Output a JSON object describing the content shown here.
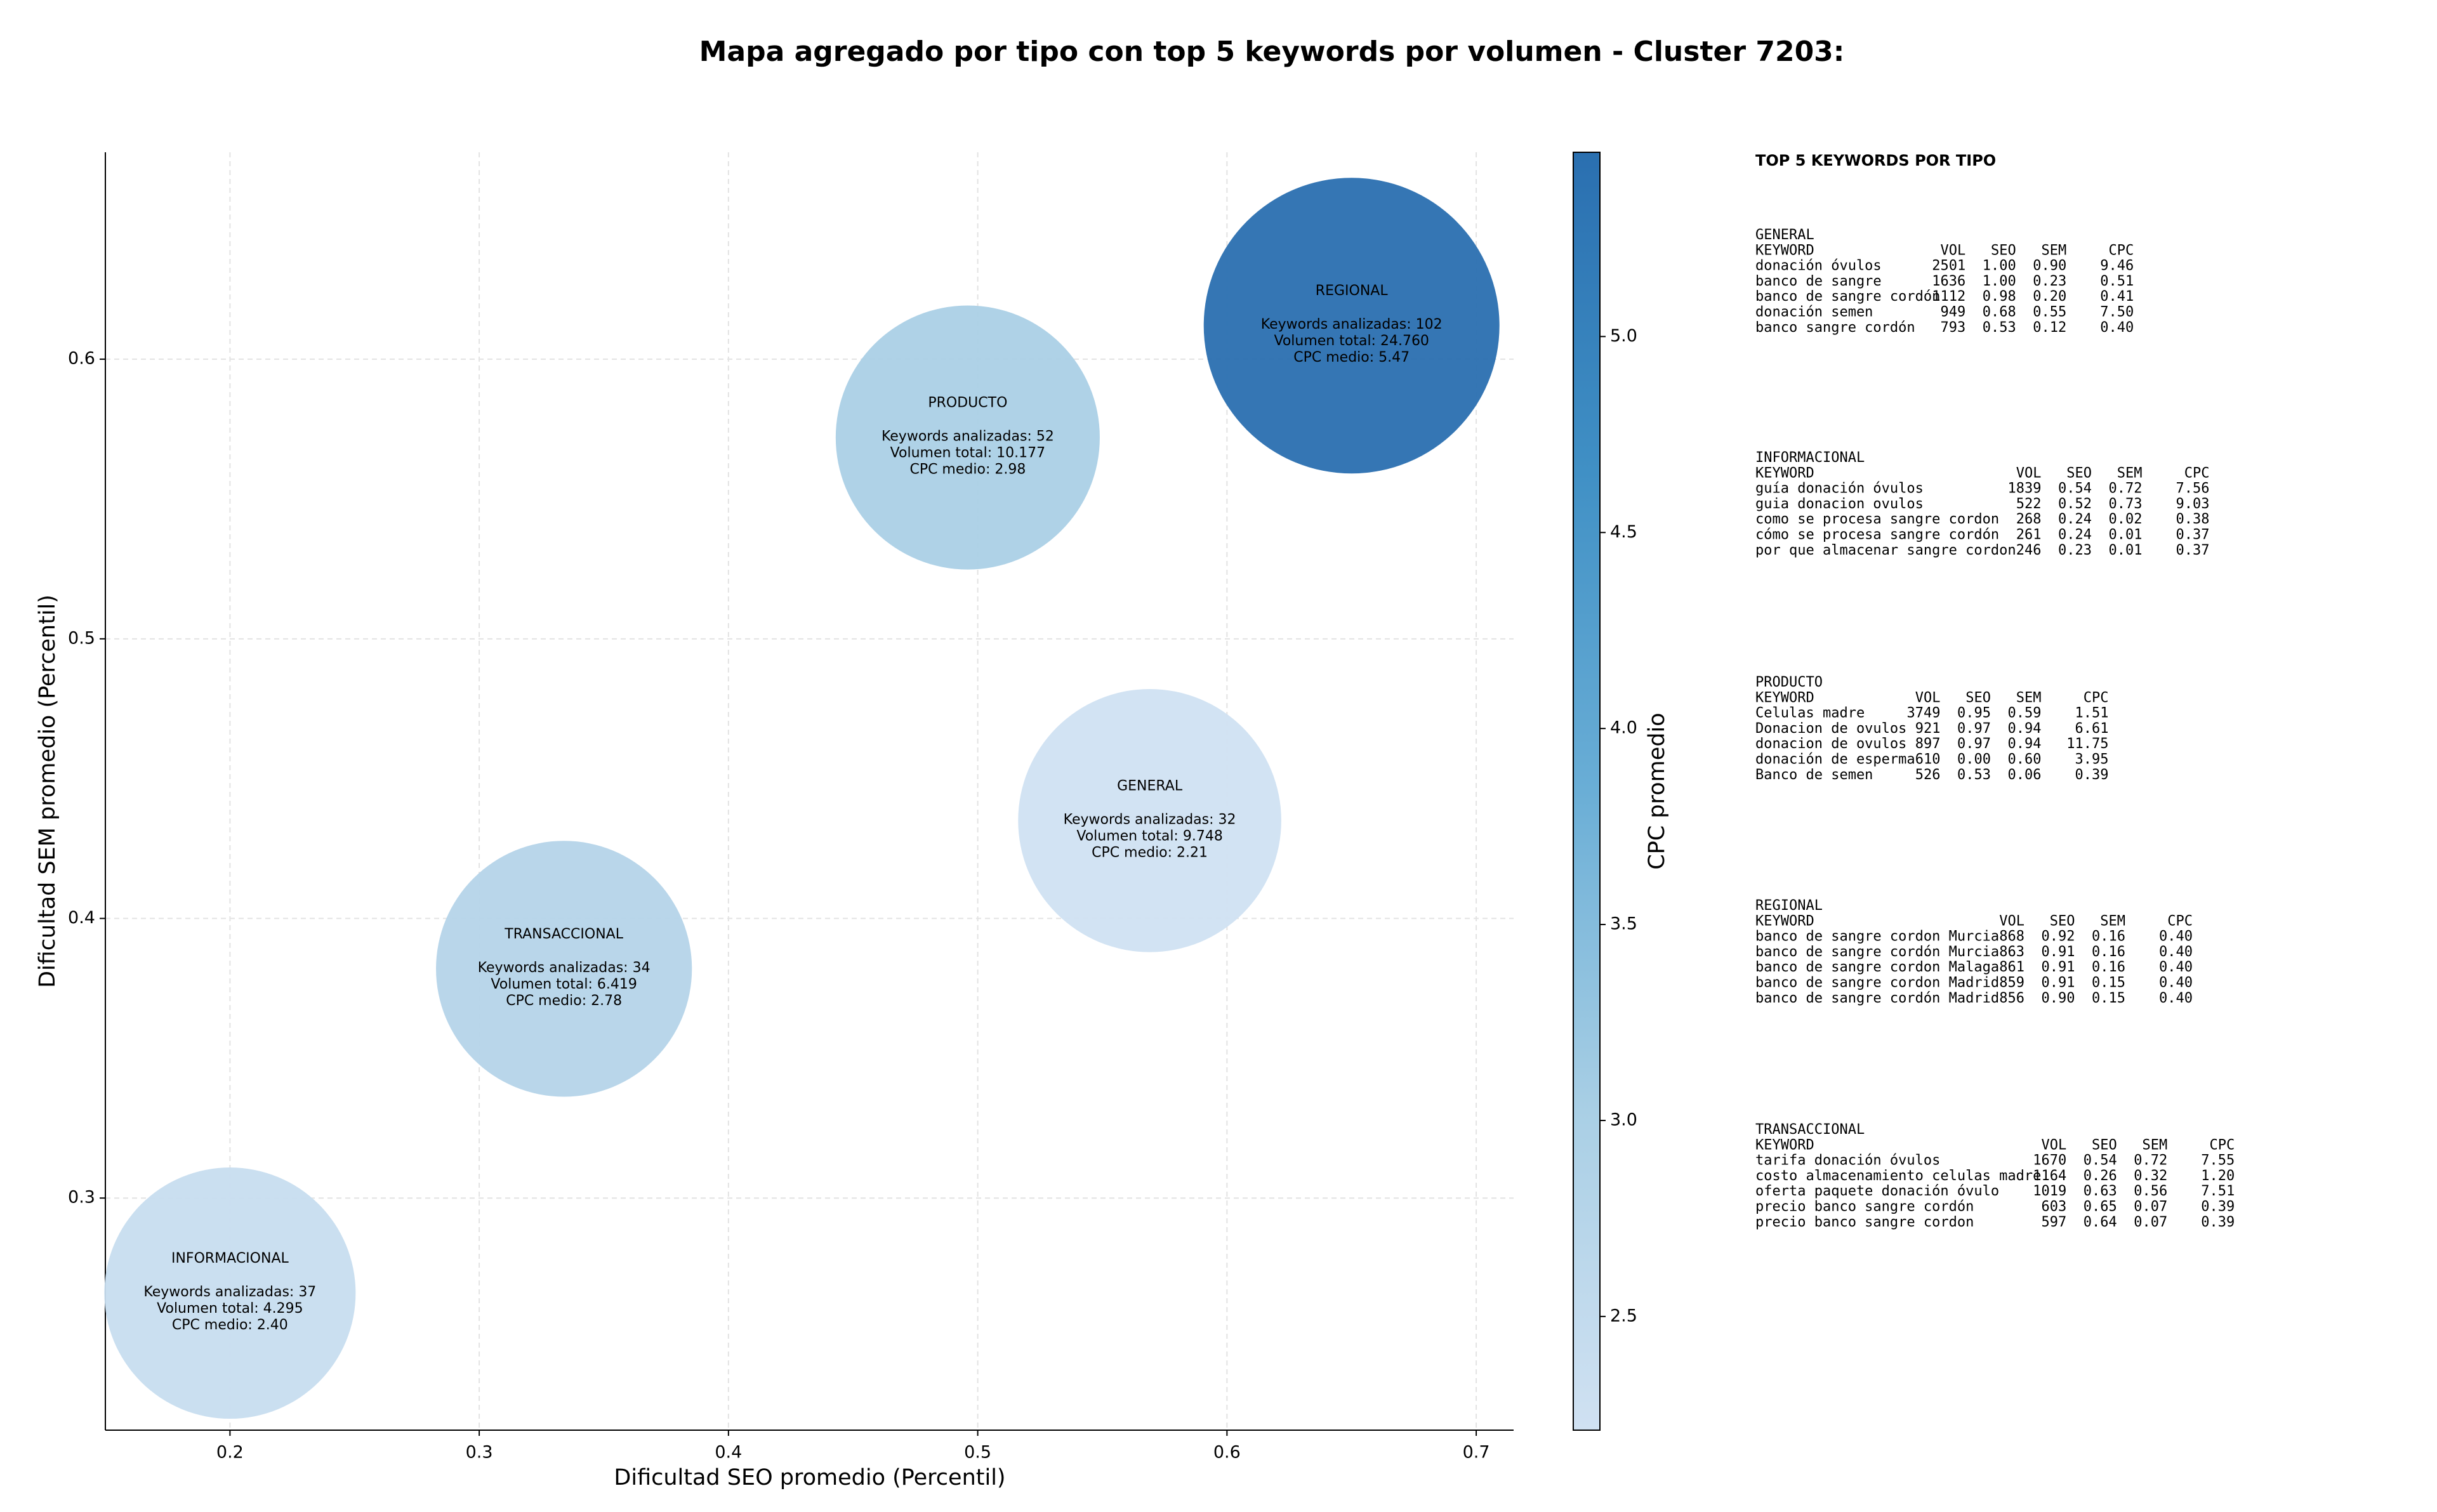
{
  "chart_data": {
    "type": "bubble",
    "title": "Mapa agregado por tipo con top 5 keywords por volumen - Cluster 7203:",
    "xlabel": "Dificultad SEO promedio (Percentil)",
    "ylabel": "Dificultad SEM promedio (Percentil)",
    "xlim": [
      0.15,
      0.715
    ],
    "ylim": [
      0.217,
      0.674
    ],
    "xticks": [
      0.2,
      0.3,
      0.4,
      0.5,
      0.6,
      0.7
    ],
    "yticks": [
      0.3,
      0.4,
      0.5,
      0.6
    ],
    "grid": true,
    "categories": [
      "INFORMACIONAL",
      "TRANSACCIONAL",
      "PRODUCTO",
      "GENERAL",
      "REGIONAL"
    ],
    "x": [
      0.2,
      0.334,
      0.496,
      0.569,
      0.65
    ],
    "values": [
      0.266,
      0.382,
      0.572,
      0.435,
      0.612
    ],
    "sizes": [
      4295,
      6419,
      10177,
      9748,
      24760
    ],
    "cpc": [
      2.4,
      2.78,
      2.98,
      2.21,
      5.47
    ],
    "annotations": [
      [
        "Keywords analizadas: 37",
        "Volumen total: 4.295",
        "CPC medio: 2.40"
      ],
      [
        "Keywords analizadas: 34",
        "Volumen total: 6.419",
        "CPC medio: 2.78"
      ],
      [
        "Keywords analizadas: 52",
        "Volumen total: 10.177",
        "CPC medio: 2.98"
      ],
      [
        "Keywords analizadas: 32",
        "Volumen total: 9.748",
        "CPC medio: 2.21"
      ],
      [
        "Keywords analizadas: 102",
        "Volumen total: 24.760",
        "CPC medio: 5.47"
      ]
    ],
    "colorbar": {
      "label": "CPC promedio",
      "lim": [
        2.21,
        5.47
      ],
      "ticks": [
        2.5,
        {
          "value": 3,
          "label": "3.0"
        },
        3.5,
        {
          "value": 4,
          "label": "4.0"
        },
        4.5,
        {
          "value": 5,
          "label": "5.0"
        }
      ],
      "colors": [
        "#d0e1f2",
        "#a9cfe5",
        "#6aaed6",
        "#4090c5",
        "#2a6fb0"
      ]
    }
  },
  "panel": {
    "title": "TOP 5 KEYWORDS POR TIPO",
    "columns": [
      "KEYWORD",
      "VOL",
      "SEO",
      "SEM",
      "CPC"
    ],
    "groups": [
      {
        "name": "GENERAL",
        "rows": [
          [
            "donación óvulos",
            "2501",
            "1.00",
            "0.90",
            "9.46"
          ],
          [
            "banco de sangre",
            "1636",
            "1.00",
            "0.23",
            "0.51"
          ],
          [
            "banco de sangre cordón",
            "1112",
            "0.98",
            "0.20",
            "0.41"
          ],
          [
            "donación semen",
            "949",
            "0.68",
            "0.55",
            "7.50"
          ],
          [
            "banco sangre cordón",
            "793",
            "0.53",
            "0.12",
            "0.40"
          ]
        ]
      },
      {
        "name": "INFORMACIONAL",
        "rows": [
          [
            "guía donación óvulos",
            "1839",
            "0.54",
            "0.72",
            "7.56"
          ],
          [
            "guia donacion ovulos",
            "522",
            "0.52",
            "0.73",
            "9.03"
          ],
          [
            "como se procesa sangre cordon",
            "268",
            "0.24",
            "0.02",
            "0.38"
          ],
          [
            "cómo se procesa sangre cordón",
            "261",
            "0.24",
            "0.01",
            "0.37"
          ],
          [
            "por que almacenar sangre cordon",
            "246",
            "0.23",
            "0.01",
            "0.37"
          ]
        ]
      },
      {
        "name": "PRODUCTO",
        "rows": [
          [
            "Celulas madre",
            "3749",
            "0.95",
            "0.59",
            "1.51"
          ],
          [
            "Donacion de ovulos",
            "921",
            "0.97",
            "0.94",
            "6.61"
          ],
          [
            "donacion de ovulos",
            "897",
            "0.97",
            "0.94",
            "11.75"
          ],
          [
            "donación de esperma",
            "610",
            "0.00",
            "0.60",
            "3.95"
          ],
          [
            "Banco de semen",
            "526",
            "0.53",
            "0.06",
            "0.39"
          ]
        ]
      },
      {
        "name": "REGIONAL",
        "rows": [
          [
            "banco de sangre cordon Murcia",
            "868",
            "0.92",
            "0.16",
            "0.40"
          ],
          [
            "banco de sangre cordón Murcia",
            "863",
            "0.91",
            "0.16",
            "0.40"
          ],
          [
            "banco de sangre cordon Malaga",
            "861",
            "0.91",
            "0.16",
            "0.40"
          ],
          [
            "banco de sangre cordon Madrid",
            "859",
            "0.91",
            "0.15",
            "0.40"
          ],
          [
            "banco de sangre cordón Madrid",
            "856",
            "0.90",
            "0.15",
            "0.40"
          ]
        ]
      },
      {
        "name": "TRANSACCIONAL",
        "rows": [
          [
            "tarifa donación óvulos",
            "1670",
            "0.54",
            "0.72",
            "7.55"
          ],
          [
            "costo almacenamiento celulas madre",
            "1164",
            "0.26",
            "0.32",
            "1.20"
          ],
          [
            "oferta paquete donación óvulo",
            "1019",
            "0.63",
            "0.56",
            "7.51"
          ],
          [
            "precio banco sangre cordón",
            "603",
            "0.65",
            "0.07",
            "0.39"
          ],
          [
            "precio banco sangre cordon",
            "597",
            "0.64",
            "0.07",
            "0.39"
          ]
        ]
      }
    ]
  }
}
